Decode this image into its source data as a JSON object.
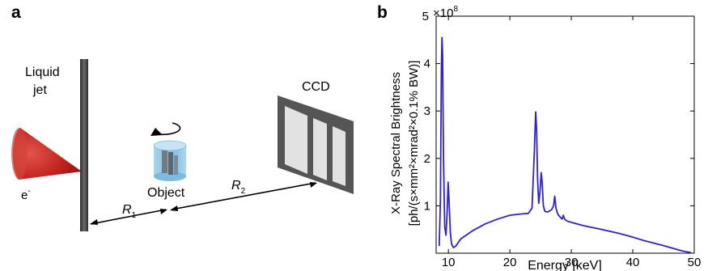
{
  "panel_a": {
    "label": "a",
    "jet_label_line1": "Liquid",
    "jet_label_line2": "jet",
    "electron_base": "e",
    "electron_sup": "-",
    "object_label": "Object",
    "ccd_label": "CCD",
    "r1_base": "R",
    "r1_sub": "1",
    "r2_base": "R",
    "r2_sub": "2"
  },
  "panel_b": {
    "label": "b",
    "exponent_base": "5",
    "exponent_text": "×10",
    "exponent_power": "8"
  },
  "colors": {
    "series": "#2e1fe0",
    "cone": "#c0221c",
    "jet": "#4a4a4a",
    "ccd_frame": "#555555",
    "ccd_panel": "#e2e2e2",
    "object_glass": "#8fc6e3"
  },
  "chart_data": {
    "type": "line",
    "title": "",
    "xlabel": "Energy [keV]",
    "ylabel_line1": "X-Ray Spectral Brightness",
    "ylabel_line2": "[ph/(s×mm²×mrad²×0.1% BW)]",
    "xlim": [
      8,
      50
    ],
    "ylim": [
      0,
      5
    ],
    "y_scale_note": "×10^8",
    "xticks": [
      10,
      20,
      30,
      40,
      50
    ],
    "yticks": [
      1,
      2,
      3,
      4
    ],
    "series": [
      {
        "color": "#2e1fe0",
        "x": [
          8.5,
          8.7,
          8.85,
          8.95,
          9.05,
          9.2,
          9.4,
          9.6,
          9.8,
          9.95,
          10.1,
          10.3,
          10.5,
          10.8,
          11.2,
          12,
          14,
          16,
          18,
          20,
          22,
          23,
          23.6,
          24.0,
          24.2,
          24.35,
          24.5,
          24.7,
          24.9,
          25.1,
          25.25,
          25.45,
          25.7,
          26.2,
          26.8,
          27.1,
          27.3,
          27.5,
          27.8,
          28.2,
          28.5,
          28.7,
          28.9,
          29.3,
          30,
          32,
          35,
          38,
          40,
          42,
          45,
          48,
          49.5
        ],
        "values": [
          0.15,
          1.1,
          3.9,
          4.55,
          4.2,
          2.0,
          0.55,
          0.38,
          0.9,
          1.5,
          1.1,
          0.45,
          0.2,
          0.12,
          0.15,
          0.3,
          0.48,
          0.62,
          0.72,
          0.8,
          0.83,
          0.84,
          0.95,
          2.2,
          2.98,
          2.6,
          1.6,
          1.05,
          1.3,
          1.7,
          1.5,
          1.0,
          0.88,
          0.87,
          0.92,
          1.0,
          1.2,
          0.95,
          0.82,
          0.76,
          0.72,
          0.8,
          0.72,
          0.68,
          0.65,
          0.58,
          0.5,
          0.41,
          0.34,
          0.26,
          0.16,
          0.05,
          0.01
        ]
      }
    ]
  }
}
